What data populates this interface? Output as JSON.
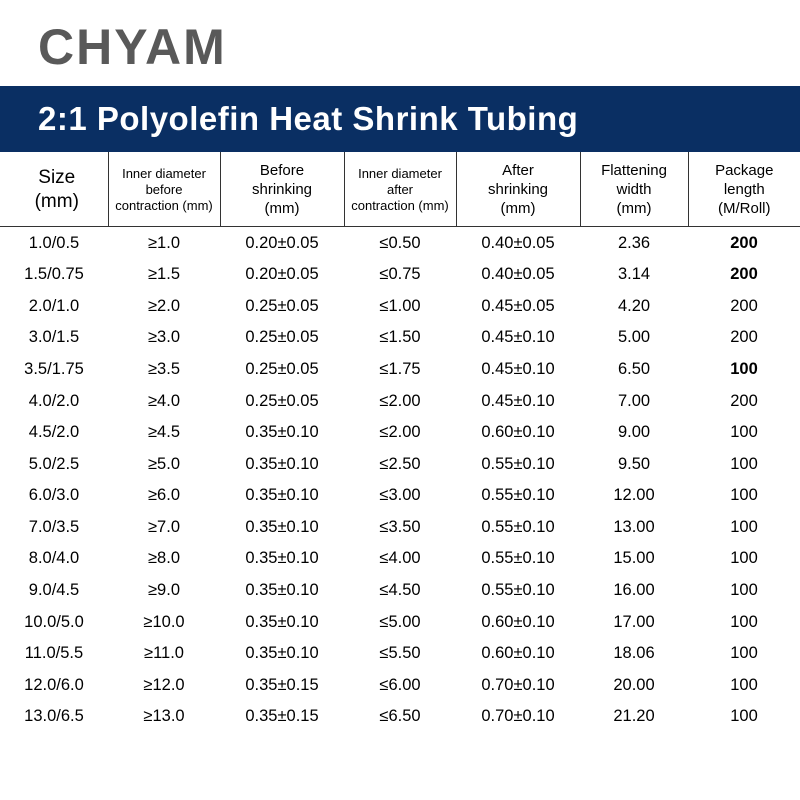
{
  "brand": "CHYAM",
  "title": "2:1 Polyolefin Heat Shrink Tubing",
  "colors": {
    "brand_text": "#595959",
    "title_bg": "#0a2f63",
    "title_text": "#ffffff",
    "table_border": "#333333",
    "page_bg": "#ffffff",
    "cell_text": "#000000"
  },
  "table": {
    "columns": [
      {
        "label_l1": "Size",
        "label_l2": "(mm)",
        "label_l3": "",
        "width": "13.5%",
        "header_fontsize": 19
      },
      {
        "label_l1": "Inner diameter",
        "label_l2": "before",
        "label_l3": "contraction (mm)",
        "width": "14%",
        "header_fontsize": 13
      },
      {
        "label_l1": "Before",
        "label_l2": "shrinking",
        "label_l3": "(mm)",
        "width": "15.5%",
        "header_fontsize": 15
      },
      {
        "label_l1": "Inner diameter",
        "label_l2": "after",
        "label_l3": "contraction (mm)",
        "width": "14%",
        "header_fontsize": 13
      },
      {
        "label_l1": "After",
        "label_l2": "shrinking",
        "label_l3": "(mm)",
        "width": "15.5%",
        "header_fontsize": 15
      },
      {
        "label_l1": "Flattening",
        "label_l2": "width",
        "label_l3": "(mm)",
        "width": "13.5%",
        "header_fontsize": 15
      },
      {
        "label_l1": "Package",
        "label_l2": "length",
        "label_l3": "(M/Roll)",
        "width": "14%",
        "header_fontsize": 15
      }
    ],
    "rows": [
      [
        "1.0/0.5",
        "≥1.0",
        "0.20±0.05",
        "≤0.50",
        "0.40±0.05",
        "2.36",
        "200"
      ],
      [
        "1.5/0.75",
        "≥1.5",
        "0.20±0.05",
        "≤0.75",
        "0.40±0.05",
        "3.14",
        "200"
      ],
      [
        "2.0/1.0",
        "≥2.0",
        "0.25±0.05",
        "≤1.00",
        "0.45±0.05",
        "4.20",
        "200"
      ],
      [
        "3.0/1.5",
        "≥3.0",
        "0.25±0.05",
        "≤1.50",
        "0.45±0.10",
        "5.00",
        "200"
      ],
      [
        "3.5/1.75",
        "≥3.5",
        "0.25±0.05",
        "≤1.75",
        "0.45±0.10",
        "6.50",
        "100"
      ],
      [
        "4.0/2.0",
        "≥4.0",
        "0.25±0.05",
        "≤2.00",
        "0.45±0.10",
        "7.00",
        "200"
      ],
      [
        "4.5/2.0",
        "≥4.5",
        "0.35±0.10",
        "≤2.00",
        "0.60±0.10",
        "9.00",
        "100"
      ],
      [
        "5.0/2.5",
        "≥5.0",
        "0.35±0.10",
        "≤2.50",
        "0.55±0.10",
        "9.50",
        "100"
      ],
      [
        "6.0/3.0",
        "≥6.0",
        "0.35±0.10",
        "≤3.00",
        "0.55±0.10",
        "12.00",
        "100"
      ],
      [
        "7.0/3.5",
        "≥7.0",
        "0.35±0.10",
        "≤3.50",
        "0.55±0.10",
        "13.00",
        "100"
      ],
      [
        "8.0/4.0",
        "≥8.0",
        "0.35±0.10",
        "≤4.00",
        "0.55±0.10",
        "15.00",
        "100"
      ],
      [
        "9.0/4.5",
        "≥9.0",
        "0.35±0.10",
        "≤4.50",
        "0.55±0.10",
        "16.00",
        "100"
      ],
      [
        "10.0/5.0",
        "≥10.0",
        "0.35±0.10",
        "≤5.00",
        "0.60±0.10",
        "17.00",
        "100"
      ],
      [
        "11.0/5.5",
        "≥11.0",
        "0.35±0.10",
        "≤5.50",
        "0.60±0.10",
        "18.06",
        "100"
      ],
      [
        "12.0/6.0",
        "≥12.0",
        "0.35±0.15",
        "≤6.00",
        "0.70±0.10",
        "20.00",
        "100"
      ],
      [
        "13.0/6.5",
        "≥13.0",
        "0.35±0.15",
        "≤6.50",
        "0.70±0.10",
        "21.20",
        "100"
      ]
    ],
    "bold_cells": [
      [
        0,
        6
      ],
      [
        1,
        6
      ],
      [
        4,
        6
      ]
    ]
  }
}
